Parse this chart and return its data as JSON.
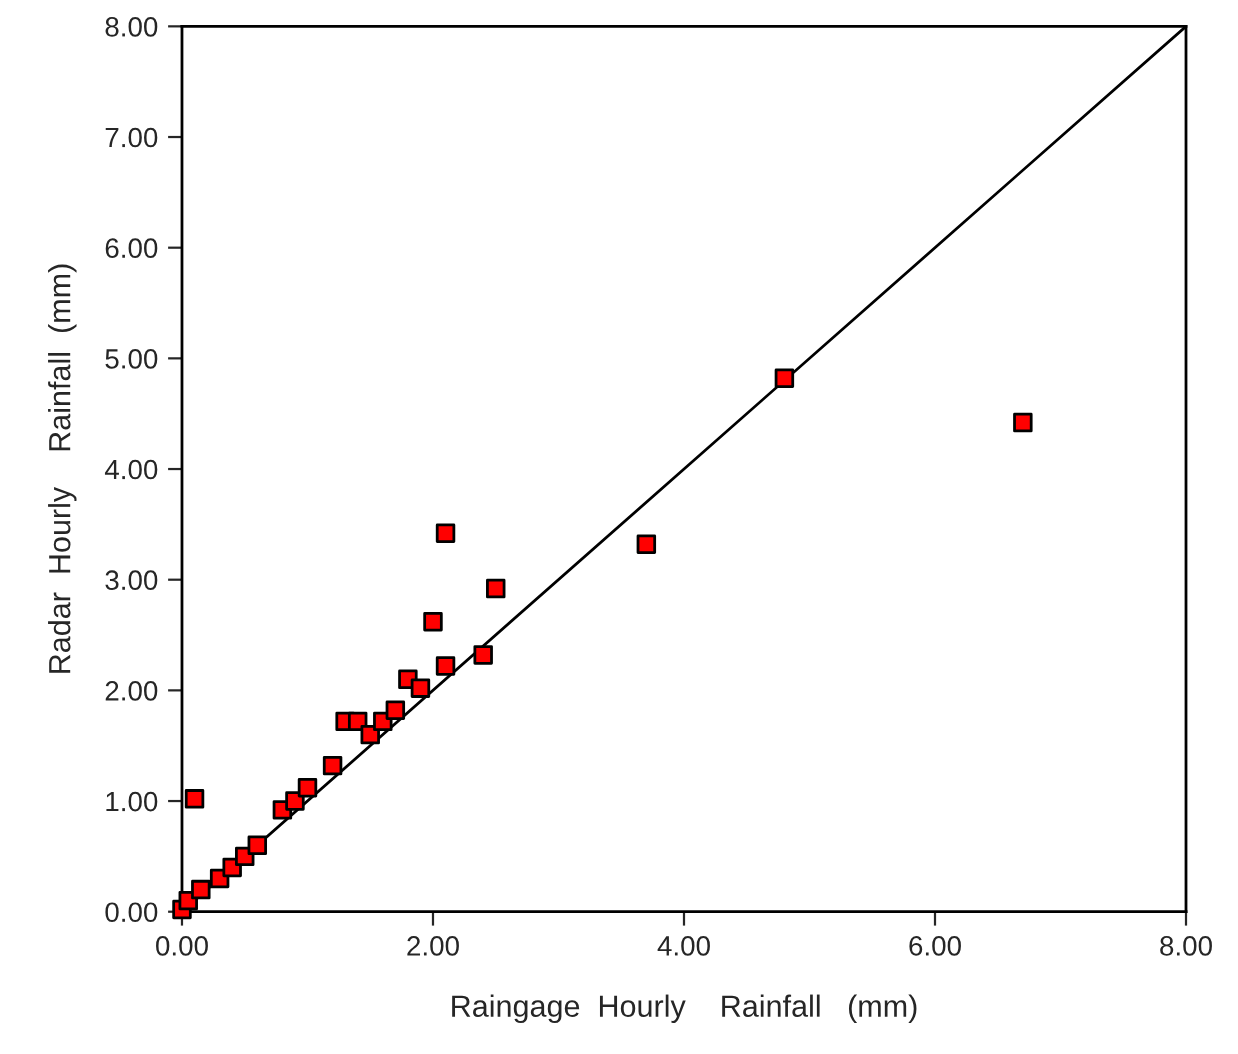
{
  "chart_data": {
    "type": "scatter",
    "xlabel": "Raingage  Hourly    Rainfall   (mm)",
    "ylabel": "Radar  Hourly    Rainfall  (mm)",
    "xlim": [
      0,
      8
    ],
    "ylim": [
      0,
      8
    ],
    "xticks": [
      {
        "value": 0,
        "label": "0.00"
      },
      {
        "value": 2,
        "label": "2.00"
      },
      {
        "value": 4,
        "label": "4.00"
      },
      {
        "value": 6,
        "label": "6.00"
      },
      {
        "value": 8,
        "label": "8.00"
      }
    ],
    "yticks": [
      {
        "value": 0,
        "label": "0.00"
      },
      {
        "value": 1,
        "label": "1.00"
      },
      {
        "value": 2,
        "label": "2.00"
      },
      {
        "value": 3,
        "label": "3.00"
      },
      {
        "value": 4,
        "label": "4.00"
      },
      {
        "value": 5,
        "label": "5.00"
      },
      {
        "value": 6,
        "label": "6.00"
      },
      {
        "value": 7,
        "label": "7.00"
      },
      {
        "value": 8,
        "label": "8.00"
      }
    ],
    "grid": false,
    "series": [
      {
        "marker": "square",
        "color": "#ff0000",
        "x": [
          0,
          0.1,
          0.05,
          0.15,
          0.3,
          0.4,
          0.5,
          0.6,
          0.8,
          0.9,
          1.0,
          1.2,
          1.3,
          1.4,
          1.5,
          1.6,
          1.7,
          1.8,
          1.9,
          2.0,
          2.1,
          2.1,
          2.4,
          2.5,
          3.7,
          4.8,
          6.7
        ],
        "values": [
          0.02,
          1.02,
          0.1,
          0.2,
          0.3,
          0.4,
          0.5,
          0.6,
          0.92,
          1.0,
          1.12,
          1.32,
          1.72,
          1.72,
          1.6,
          1.72,
          1.82,
          2.1,
          2.02,
          2.62,
          2.22,
          3.42,
          2.32,
          2.92,
          3.32,
          4.82,
          4.42
        ]
      },
      {
        "type": "line",
        "color": "#000000",
        "x": [
          0,
          8
        ],
        "values": [
          0,
          8
        ]
      }
    ]
  }
}
